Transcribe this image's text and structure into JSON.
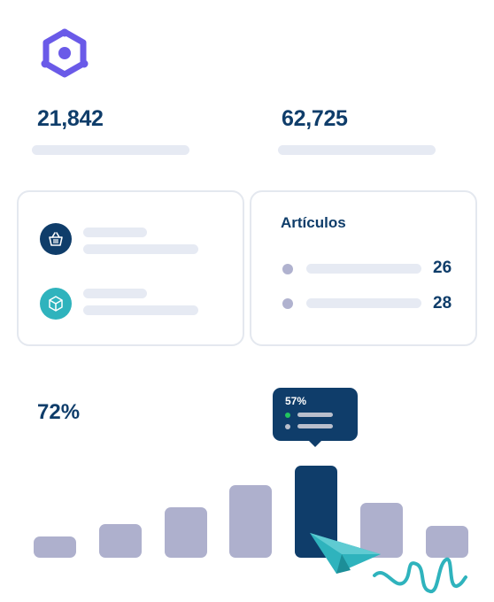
{
  "brand": {
    "logo_icon": "hexagon-logo-icon",
    "color": "#6a5ae8"
  },
  "stats": [
    {
      "value": "21,842"
    },
    {
      "value": "62,725"
    }
  ],
  "categories_card": {
    "items": [
      {
        "icon": "basket-icon",
        "color": "#0f3d6a"
      },
      {
        "icon": "box-icon",
        "color": "#2fb3bd"
      }
    ]
  },
  "articles_card": {
    "title": "Artículos",
    "rows": [
      {
        "value": "26"
      },
      {
        "value": "28"
      }
    ]
  },
  "chart": {
    "percent_label": "72%",
    "tooltip": {
      "label": "57%",
      "indicator_colors": [
        "#22c55e",
        "#b9bfcc"
      ]
    },
    "cursor_icon": "paper-plane-icon",
    "decoration_icon": "squiggle-icon"
  },
  "chart_data": {
    "type": "bar",
    "values": [
      24,
      38,
      57,
      82,
      104,
      62,
      36
    ],
    "highlight_index": 4,
    "colors": {
      "bar": "#aeb0cd",
      "highlight": "#0f3d6a"
    }
  }
}
